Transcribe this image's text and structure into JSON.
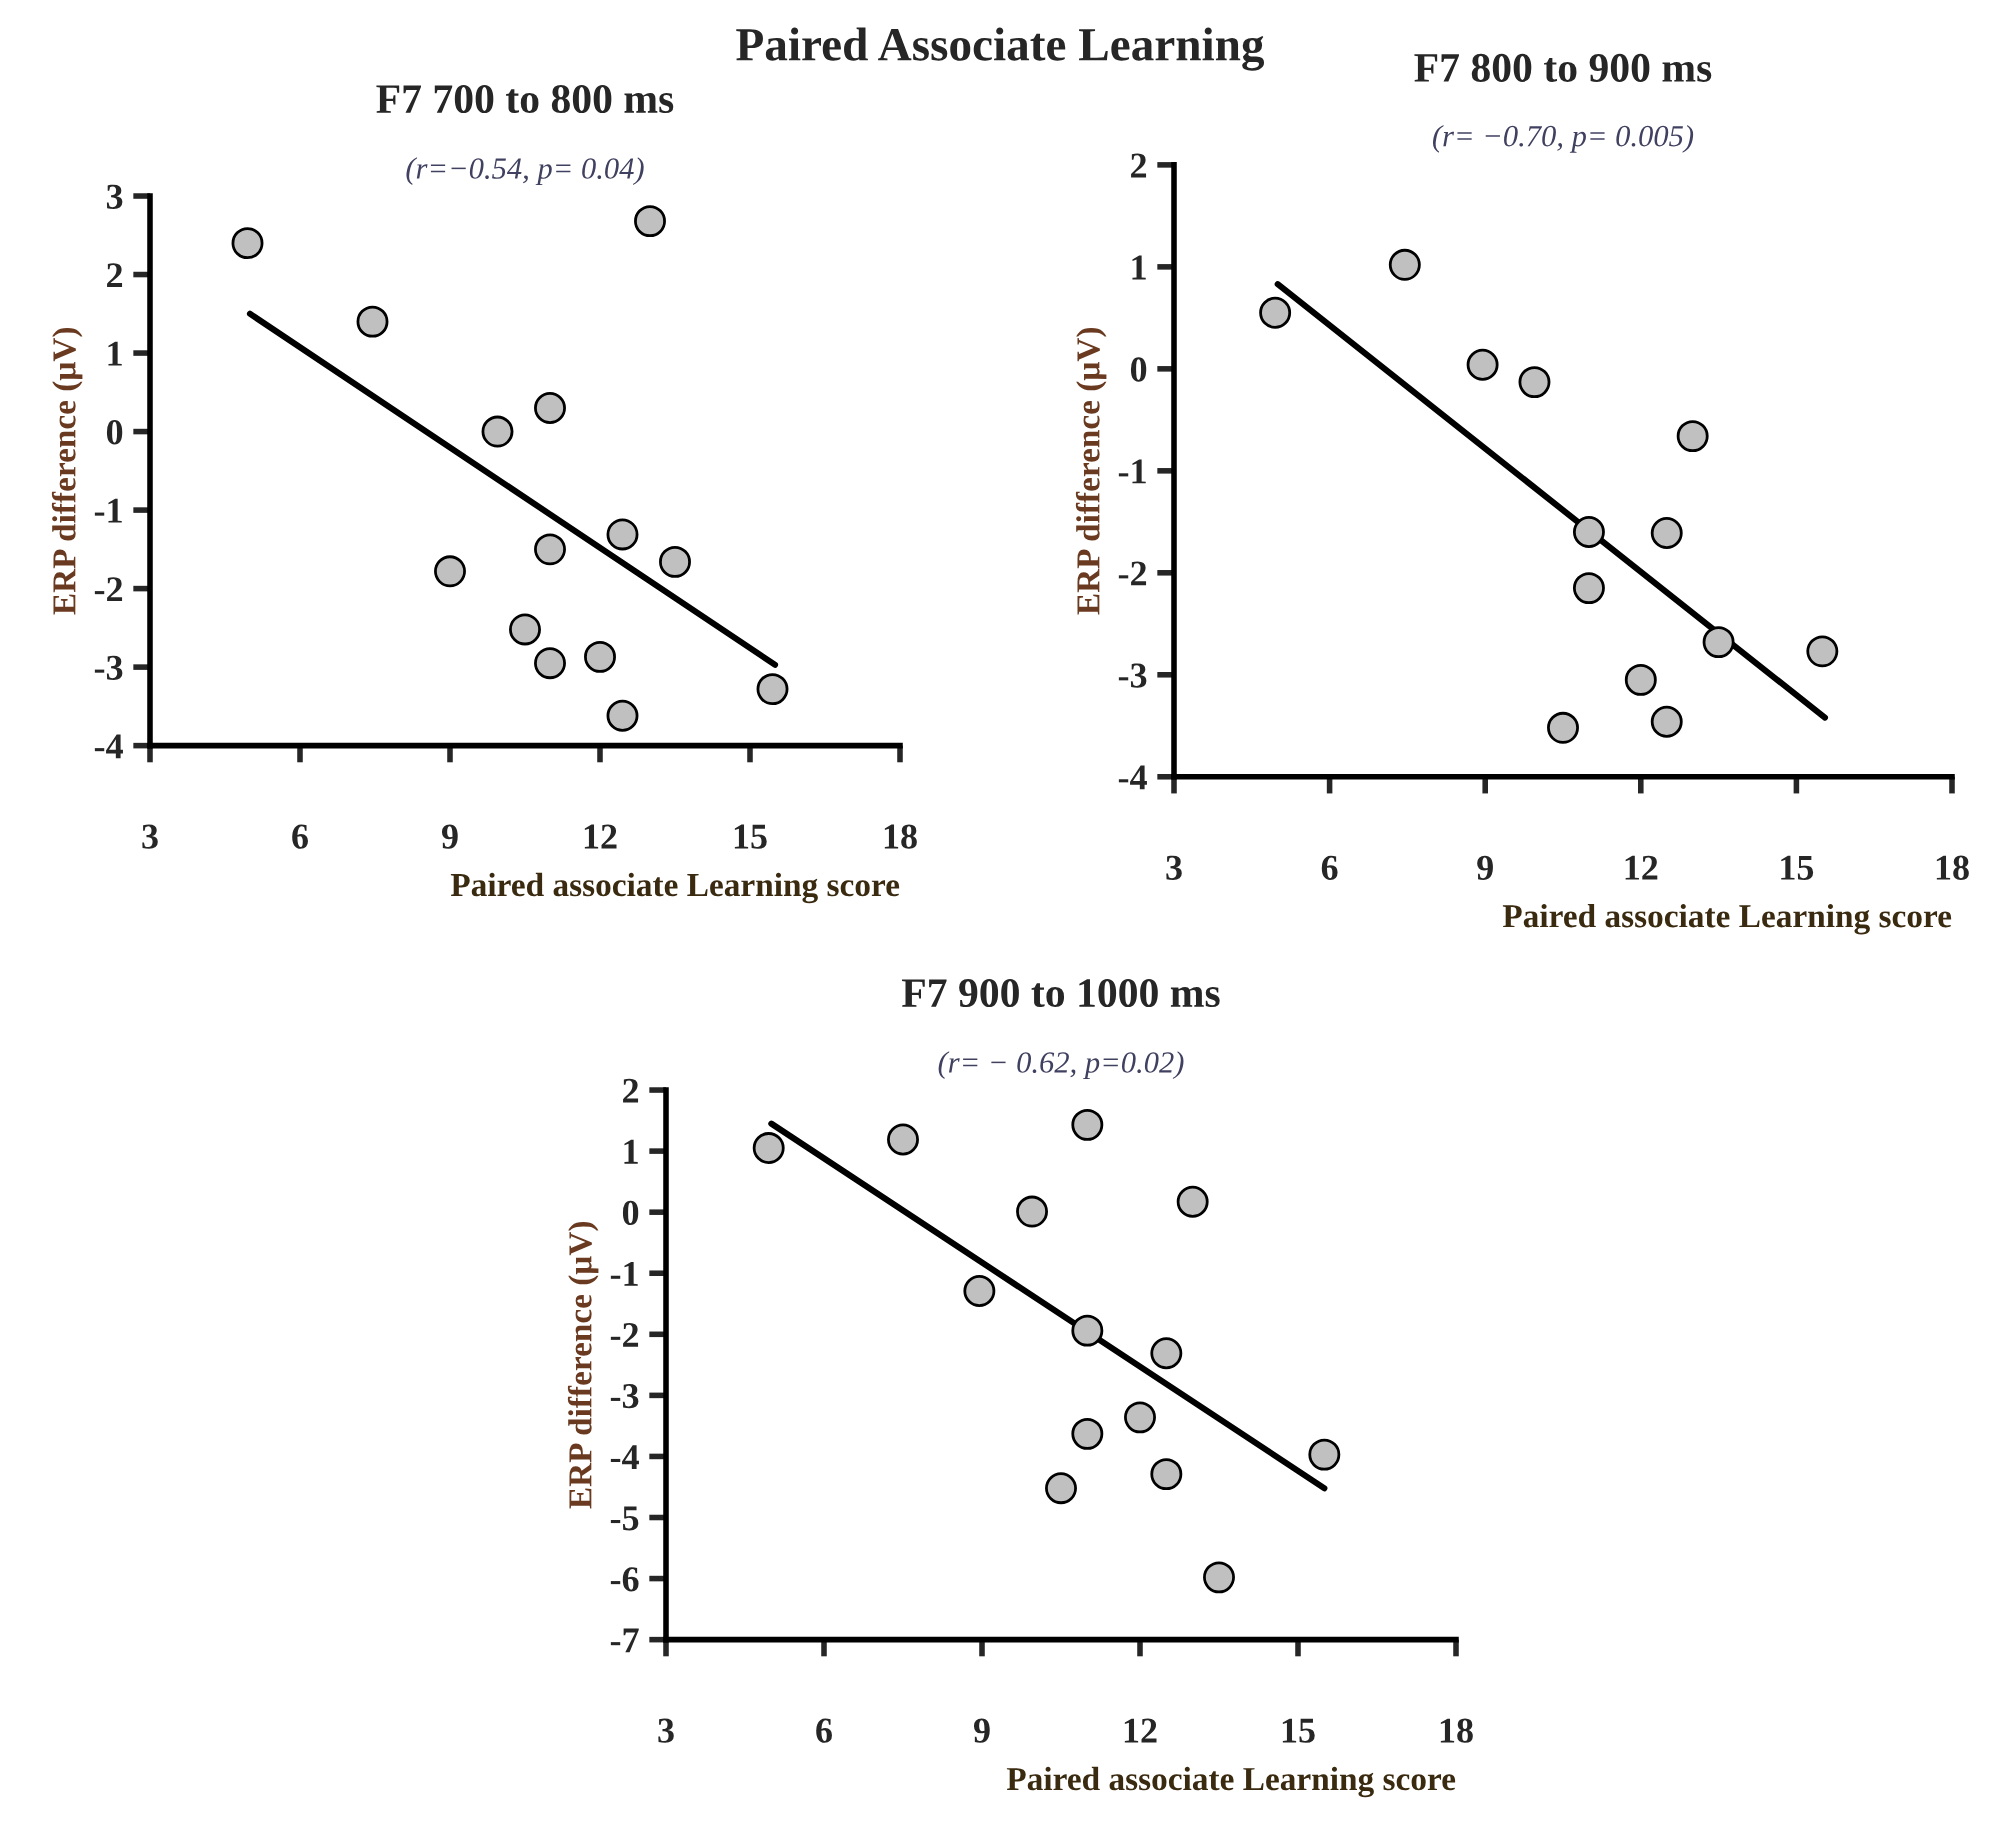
{
  "chart_data": [
    {
      "type": "scatter",
      "title": "F7 700 to 800 ms",
      "subtitle": "(r=−0.54, p= 0.04)",
      "xlabel": "Paired associate Learning score",
      "ylabel": "ERP difference (μV)",
      "annotations": [
        "Paired Associate Learning"
      ],
      "xlim": [
        3,
        18
      ],
      "xticks": [
        3,
        6,
        9,
        12,
        15,
        18
      ],
      "ylim": [
        -4,
        3
      ],
      "yticks": [
        -4,
        -3,
        -2,
        -1,
        0,
        1,
        2,
        3
      ],
      "grid": false,
      "series": [
        {
          "marker": "circle",
          "color": "#c0c0c0",
          "x": [
            4.95,
            7.45,
            9.95,
            11.0,
            9.0,
            11.0,
            12.45,
            13.5,
            10.5,
            11.0,
            12.0,
            12.45,
            15.45,
            13.0
          ],
          "values": [
            2.4,
            1.4,
            0.0,
            0.3,
            -1.78,
            -1.5,
            -1.31,
            -1.66,
            -2.52,
            -2.95,
            -2.87,
            -3.62,
            -3.28,
            2.68
          ]
        },
        {
          "type": "line",
          "color": "#000000",
          "x": [
            5.0,
            15.5
          ],
          "values": [
            1.5,
            -2.97
          ]
        }
      ]
    },
    {
      "type": "scatter",
      "title": "F7 800 to 900 ms",
      "subtitle": "(r= −0.70, p= 0.005)",
      "xlabel": "Paired associate Learning score",
      "ylabel": "ERP difference (μV)",
      "xlim": [
        3,
        18
      ],
      "xticks": [
        3,
        6,
        9,
        12,
        15,
        18
      ],
      "ylim": [
        -4,
        2
      ],
      "yticks": [
        -4,
        -3,
        -2,
        -1,
        0,
        1,
        2
      ],
      "grid": false,
      "series": [
        {
          "marker": "circle",
          "color": "#c0c0c0",
          "x": [
            4.95,
            7.45,
            8.95,
            9.95,
            13.0,
            11.0,
            12.5,
            11.0,
            13.5,
            15.5,
            12.0,
            12.5,
            10.5
          ],
          "values": [
            0.55,
            1.02,
            0.04,
            -0.13,
            -0.66,
            -1.6,
            -1.61,
            -2.15,
            -2.68,
            -2.77,
            -3.05,
            -3.46,
            -3.52
          ]
        },
        {
          "type": "line",
          "color": "#000000",
          "x": [
            5.0,
            15.55
          ],
          "values": [
            0.83,
            -3.42
          ]
        }
      ]
    },
    {
      "type": "scatter",
      "title": "F7 900 to 1000 ms",
      "subtitle": "(r= − 0.62, p=0.02)",
      "xlabel": "Paired associate Learning score",
      "ylabel": "ERP difference (μV)",
      "xlim": [
        3,
        18
      ],
      "xticks": [
        3,
        6,
        9,
        12,
        15,
        18
      ],
      "ylim": [
        -7,
        2
      ],
      "yticks": [
        -7,
        -6,
        -5,
        -4,
        -3,
        -2,
        -1,
        0,
        1,
        2
      ],
      "grid": false,
      "series": [
        {
          "marker": "circle",
          "color": "#c0c0c0",
          "x": [
            4.95,
            7.5,
            11.0,
            9.95,
            13.0,
            8.95,
            11.0,
            12.5,
            12.0,
            11.0,
            15.5,
            12.5,
            10.5,
            13.5
          ],
          "values": [
            1.05,
            1.19,
            1.43,
            0.01,
            0.17,
            -1.29,
            -1.94,
            -2.31,
            -3.36,
            -3.63,
            -3.97,
            -4.29,
            -4.52,
            -5.98
          ]
        },
        {
          "type": "line",
          "color": "#000000",
          "x": [
            5.0,
            15.5
          ],
          "values": [
            1.45,
            -4.52
          ]
        }
      ]
    }
  ]
}
